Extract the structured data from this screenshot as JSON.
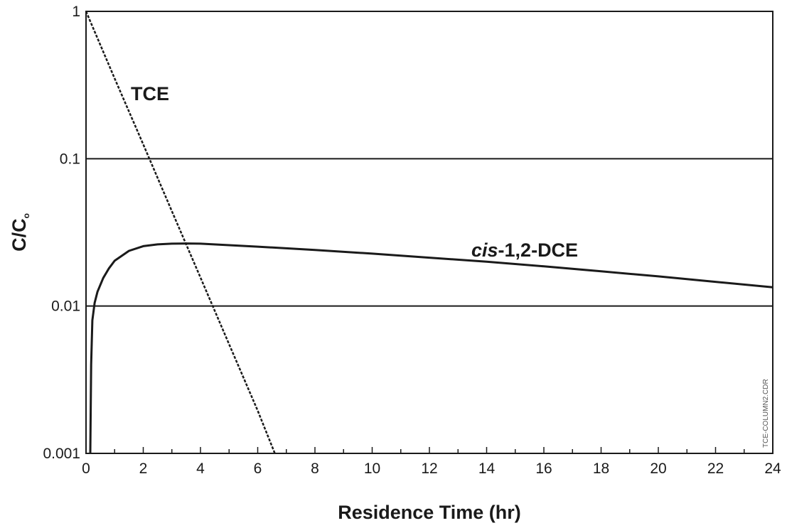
{
  "chart_data": {
    "type": "line",
    "xlabel": "Residence Time (hr)",
    "ylabel": "C/C",
    "ylabel_subscript": "o",
    "xlim": [
      0,
      24
    ],
    "ylim": [
      0.001,
      1
    ],
    "yscale": "log",
    "x_ticks": [
      0,
      2,
      4,
      6,
      8,
      10,
      12,
      14,
      16,
      18,
      20,
      22,
      24
    ],
    "x_minor_step": 1,
    "y_ticks": [
      0.001,
      0.01,
      0.1,
      1
    ],
    "y_tick_labels": [
      "0.001",
      "0.01",
      "0.1",
      "1"
    ],
    "grid": "horizontal major lines",
    "series": [
      {
        "name": "TCE",
        "line_style": "dashed",
        "x": [
          0,
          1,
          2,
          3,
          4,
          5,
          6,
          6.6
        ],
        "y": [
          1,
          0.35,
          0.125,
          0.044,
          0.0156,
          0.0055,
          0.00195,
          0.001
        ]
      },
      {
        "name": "cis-1,2-DCE",
        "name_italic_part": "cis",
        "name_rest": "-1,2-DCE",
        "line_style": "solid",
        "x": [
          0.15,
          0.18,
          0.22,
          0.3,
          0.4,
          0.6,
          0.8,
          1.0,
          1.5,
          2.0,
          2.5,
          3.0,
          3.5,
          4.0,
          5.0,
          6.0,
          8.0,
          10.0,
          12.0,
          14.0,
          16.0,
          18.0,
          20.0,
          22.0,
          24.0
        ],
        "y": [
          0.001,
          0.004,
          0.008,
          0.0105,
          0.0125,
          0.0155,
          0.018,
          0.0203,
          0.0237,
          0.0255,
          0.0262,
          0.0265,
          0.0266,
          0.0265,
          0.0259,
          0.0253,
          0.024,
          0.0227,
          0.0213,
          0.02,
          0.0186,
          0.0172,
          0.0159,
          0.0146,
          0.0134
        ]
      }
    ],
    "annotations": [
      {
        "text": "TCE",
        "series": 0
      },
      {
        "text": "cis-1,2-DCE",
        "series": 1
      }
    ],
    "watermark": "TCE-COLUMN2.CDR"
  }
}
